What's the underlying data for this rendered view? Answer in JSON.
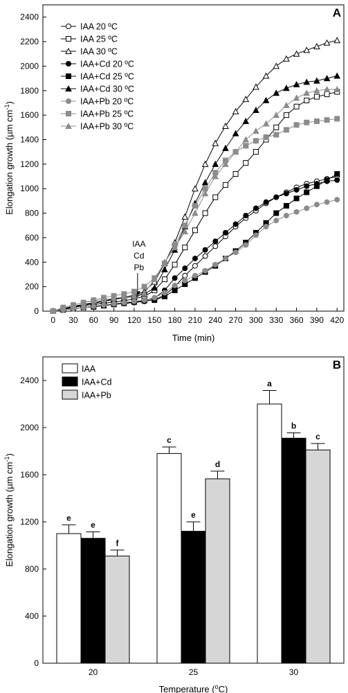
{
  "chart_data": [
    {
      "panel_label": "A",
      "type": "line",
      "xlabel": "Time (min)",
      "ylabel_main": "Elongation growth (µm cm",
      "ylabel_sup": "-1",
      "ylabel_end": ")",
      "xlim": [
        -15,
        430
      ],
      "ylim": [
        0,
        2500
      ],
      "xticks": [
        0,
        30,
        60,
        90,
        120,
        150,
        180,
        210,
        240,
        270,
        300,
        330,
        360,
        390,
        420
      ],
      "yticks": [
        0,
        200,
        400,
        600,
        800,
        1000,
        1200,
        1400,
        1600,
        1800,
        2000,
        2200,
        2400
      ],
      "grid": false,
      "legend_position": "top-left",
      "annotation": {
        "lines": [
          "IAA",
          "Cd",
          "Pb"
        ],
        "x": 125,
        "arrow_tip_y": 110
      },
      "x": [
        0,
        15,
        30,
        45,
        60,
        75,
        90,
        105,
        120,
        135,
        150,
        165,
        180,
        195,
        210,
        225,
        240,
        255,
        270,
        285,
        300,
        315,
        330,
        345,
        360,
        375,
        390,
        405,
        420
      ],
      "series": [
        {
          "name": "IAA 20 ºC",
          "marker": "circle",
          "fill": "open",
          "color": "#000000",
          "values": [
            0,
            10,
            20,
            30,
            40,
            48,
            55,
            62,
            70,
            80,
            95,
            130,
            200,
            290,
            370,
            450,
            530,
            610,
            690,
            760,
            820,
            880,
            930,
            970,
            1010,
            1040,
            1060,
            1080,
            1100
          ]
        },
        {
          "name": "IAA 25 ºC",
          "marker": "square",
          "fill": "open",
          "color": "#000000",
          "values": [
            0,
            15,
            30,
            45,
            55,
            65,
            75,
            85,
            100,
            120,
            170,
            260,
            380,
            520,
            660,
            800,
            930,
            1030,
            1120,
            1210,
            1300,
            1400,
            1500,
            1600,
            1670,
            1720,
            1750,
            1770,
            1790
          ]
        },
        {
          "name": "IAA 30 ºC",
          "marker": "triangle",
          "fill": "open",
          "color": "#000000",
          "values": [
            0,
            20,
            40,
            55,
            70,
            85,
            100,
            115,
            130,
            160,
            240,
            390,
            560,
            770,
            1000,
            1200,
            1370,
            1510,
            1630,
            1730,
            1830,
            1920,
            2000,
            2060,
            2100,
            2130,
            2160,
            2190,
            2210
          ]
        },
        {
          "name": "IAA+Cd 20 ºC",
          "marker": "circle",
          "fill": "solid",
          "color": "#000000",
          "values": [
            0,
            10,
            20,
            30,
            40,
            50,
            60,
            70,
            80,
            90,
            105,
            170,
            270,
            350,
            430,
            500,
            570,
            640,
            710,
            780,
            840,
            890,
            930,
            960,
            990,
            1020,
            1040,
            1060,
            1070
          ]
        },
        {
          "name": "IAA+Cd 25 ºC",
          "marker": "square",
          "fill": "solid",
          "color": "#000000",
          "values": [
            0,
            10,
            20,
            30,
            35,
            45,
            55,
            65,
            75,
            85,
            90,
            120,
            170,
            220,
            270,
            320,
            370,
            430,
            490,
            560,
            640,
            720,
            800,
            860,
            920,
            970,
            1020,
            1070,
            1120
          ]
        },
        {
          "name": "IAA+Cd 30 ºC",
          "marker": "triangle",
          "fill": "solid",
          "color": "#000000",
          "values": [
            0,
            20,
            35,
            50,
            65,
            80,
            95,
            110,
            120,
            140,
            190,
            340,
            500,
            690,
            880,
            1050,
            1200,
            1330,
            1450,
            1550,
            1640,
            1720,
            1780,
            1820,
            1850,
            1870,
            1880,
            1900,
            1920
          ]
        },
        {
          "name": "IAA+Pb 20 ºC",
          "marker": "circle",
          "fill": "solid",
          "color": "#8c8c8c",
          "values": [
            0,
            10,
            20,
            30,
            40,
            50,
            60,
            70,
            80,
            90,
            110,
            150,
            210,
            250,
            290,
            330,
            380,
            430,
            480,
            540,
            620,
            690,
            740,
            780,
            810,
            840,
            870,
            890,
            910
          ]
        },
        {
          "name": "IAA+Pb 25 ºC",
          "marker": "square",
          "fill": "solid",
          "color": "#8c8c8c",
          "values": [
            0,
            30,
            50,
            70,
            90,
            110,
            125,
            140,
            160,
            200,
            270,
            390,
            540,
            700,
            860,
            1000,
            1130,
            1230,
            1300,
            1350,
            1390,
            1420,
            1440,
            1480,
            1520,
            1540,
            1550,
            1560,
            1570
          ]
        },
        {
          "name": "IAA+Pb 30 ºC",
          "marker": "triangle",
          "fill": "solid",
          "color": "#8c8c8c",
          "values": [
            0,
            25,
            50,
            70,
            85,
            95,
            105,
            115,
            125,
            145,
            260,
            400,
            520,
            650,
            800,
            960,
            1100,
            1200,
            1300,
            1400,
            1470,
            1530,
            1600,
            1680,
            1740,
            1780,
            1800,
            1810,
            1810
          ]
        }
      ]
    },
    {
      "panel_label": "B",
      "type": "bar",
      "xlabel_main": "Temperature (",
      "xlabel_sup": "o",
      "xlabel_end": "C)",
      "ylabel_main": "Elongation growth (µm cm",
      "ylabel_sup": "-1",
      "ylabel_end": ")",
      "categories": [
        "20",
        "25",
        "30"
      ],
      "ylim": [
        0,
        2600
      ],
      "yticks": [
        0,
        400,
        800,
        1200,
        1600,
        2000,
        2400
      ],
      "grid": false,
      "legend_position": "top-left",
      "series": [
        {
          "name": "IAA",
          "fill": "#ffffff",
          "values": [
            1100,
            1780,
            2200
          ],
          "errors": [
            75,
            55,
            115
          ],
          "letters": [
            "e",
            "c",
            "a"
          ]
        },
        {
          "name": "IAA+Cd",
          "fill": "#000000",
          "values": [
            1060,
            1120,
            1910
          ],
          "errors": [
            55,
            80,
            45
          ],
          "letters": [
            "e",
            "e",
            "b"
          ]
        },
        {
          "name": "IAA+Pb",
          "fill": "#d6d6d6",
          "values": [
            910,
            1565,
            1810
          ],
          "errors": [
            50,
            65,
            55
          ],
          "letters": [
            "f",
            "d",
            "c"
          ]
        }
      ]
    }
  ]
}
